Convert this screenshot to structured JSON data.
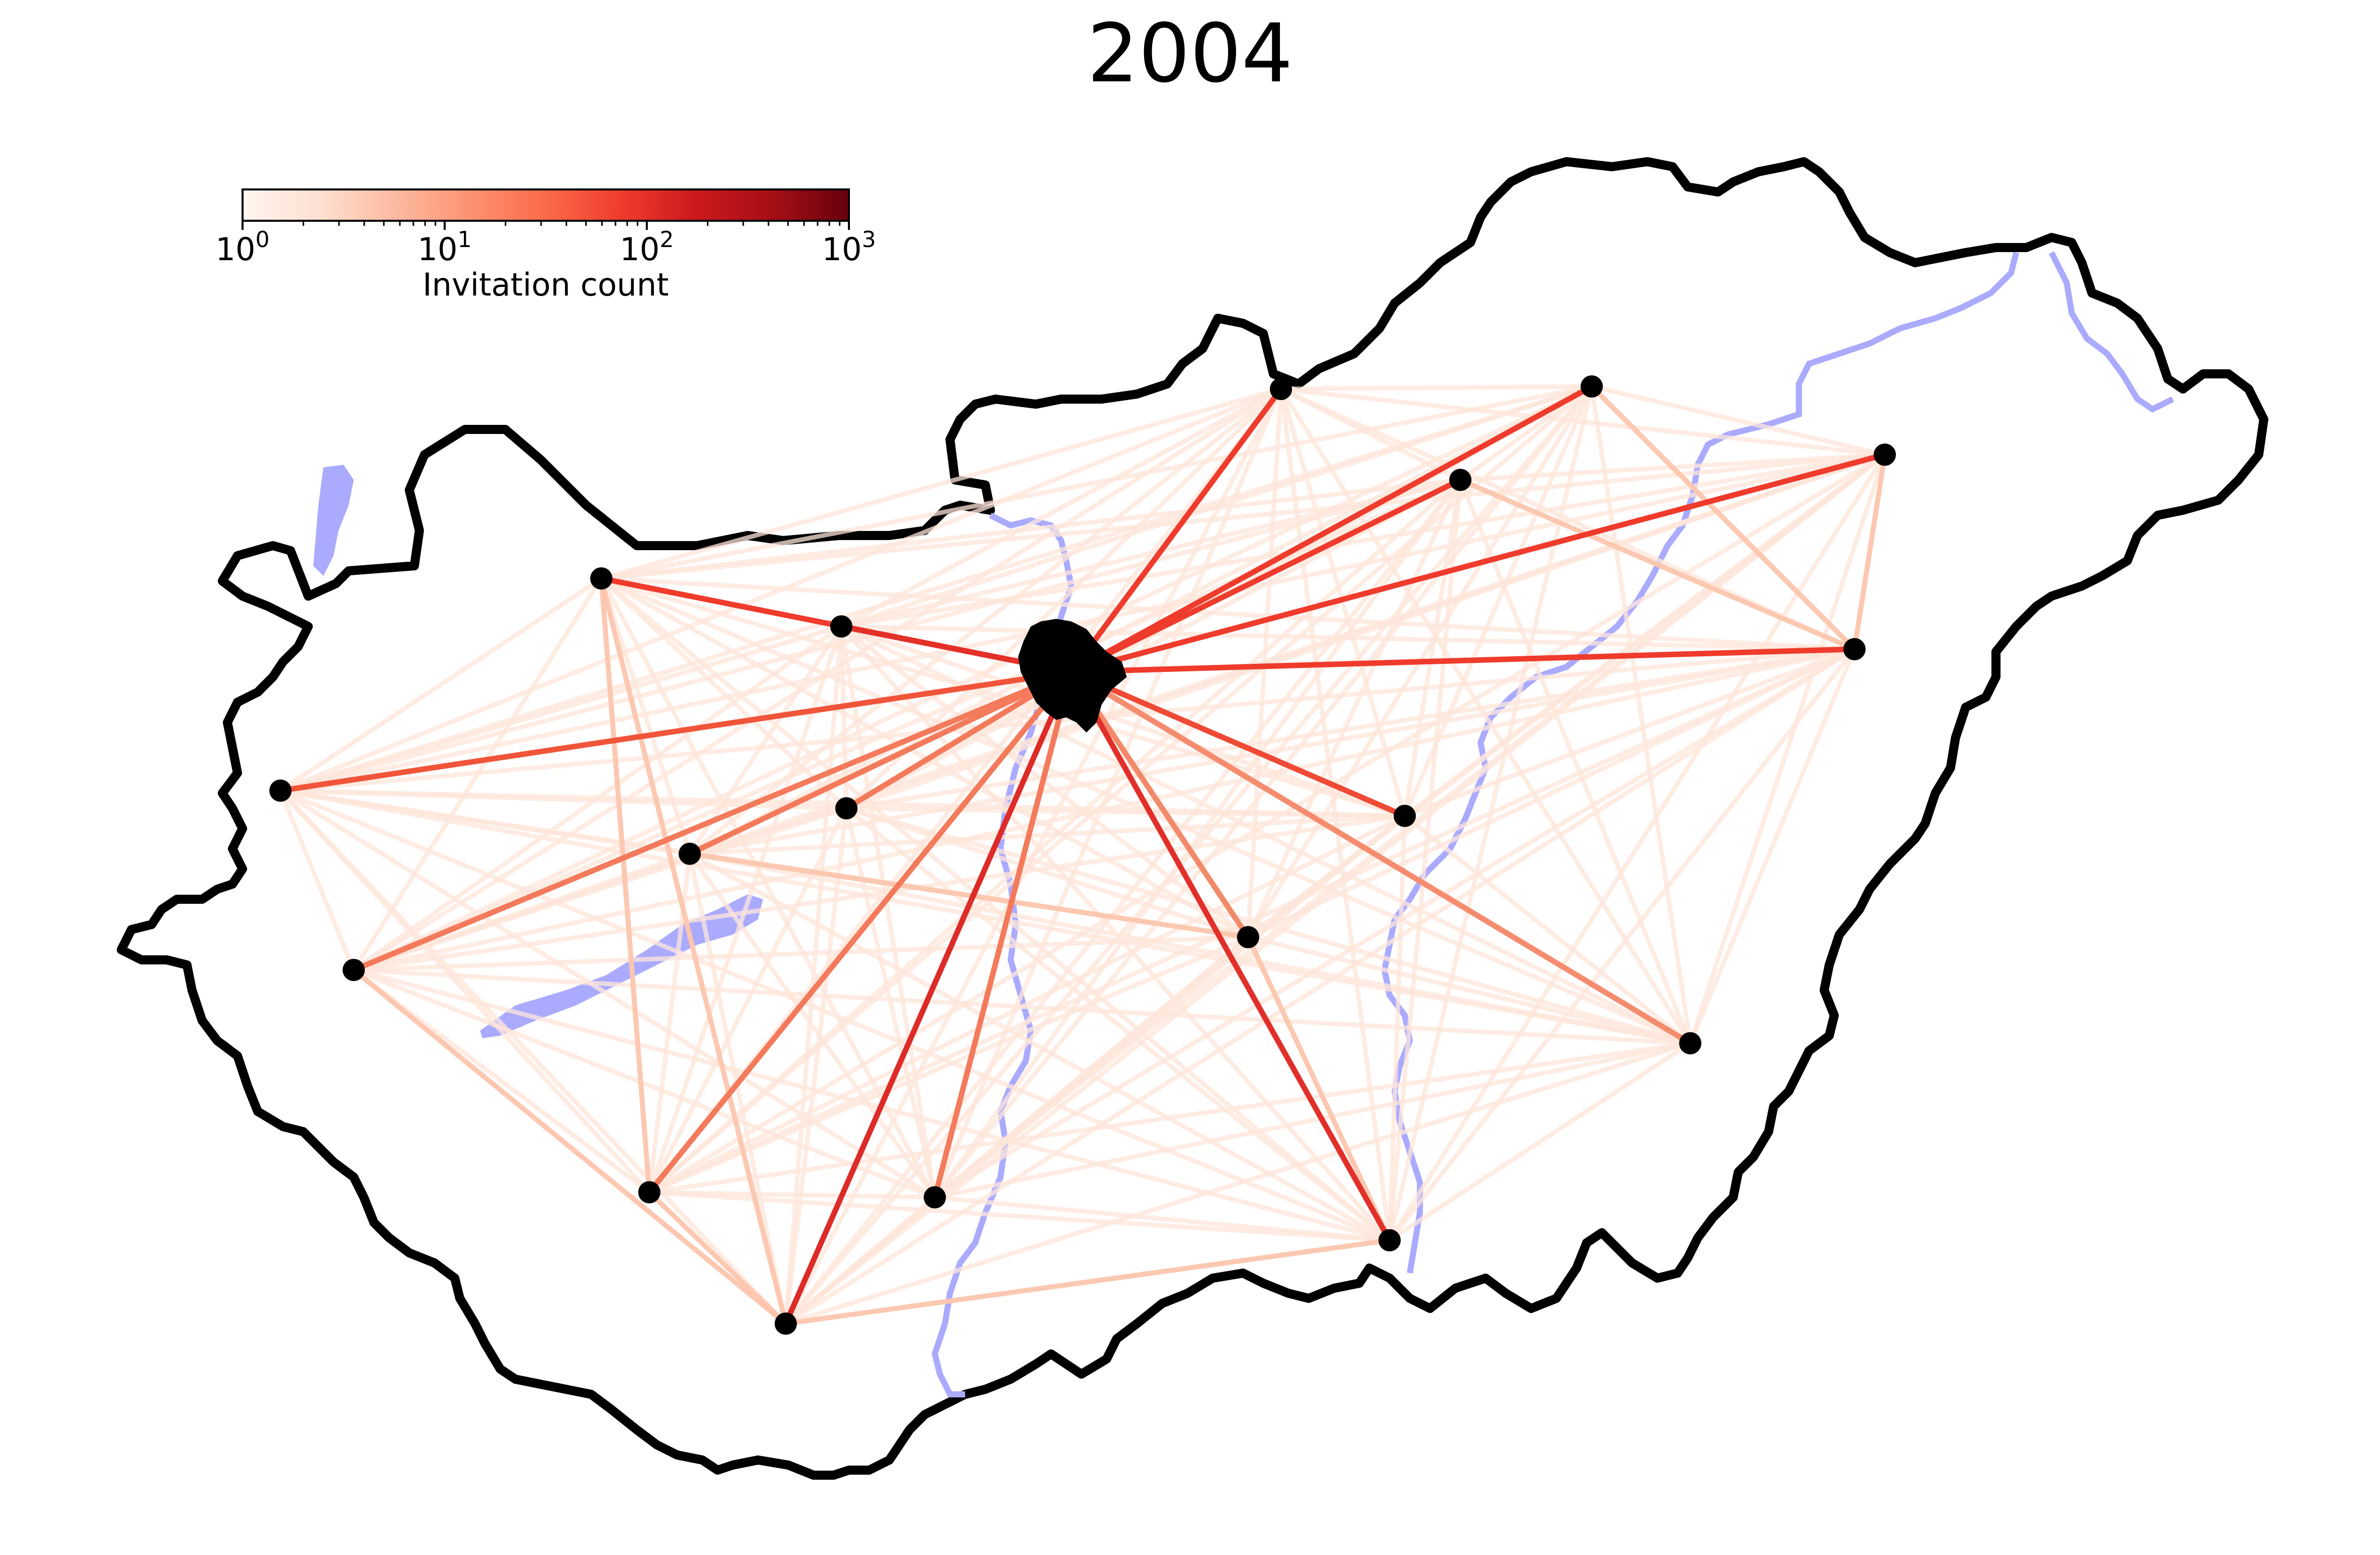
{
  "title": "2004",
  "colorbar": {
    "label": "Invitation count",
    "scale": "log",
    "range": [
      1,
      1000
    ],
    "colormap": "Reds",
    "ticks": [
      {
        "base": "10",
        "exp": "0",
        "value": 1
      },
      {
        "base": "10",
        "exp": "1",
        "value": 10
      },
      {
        "base": "10",
        "exp": "2",
        "value": 100
      },
      {
        "base": "10",
        "exp": "3",
        "value": 1000
      }
    ]
  },
  "colors": {
    "border": "#000000",
    "water": "#aaaaff",
    "node": "#000000"
  }
}
